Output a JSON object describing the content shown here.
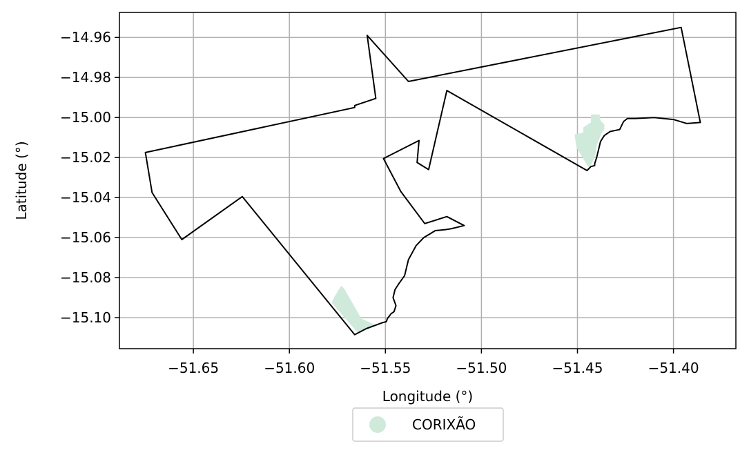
{
  "chart_data": {
    "type": "map",
    "xlabel": "Longitude (°)",
    "ylabel": "Latitude (°)",
    "xlim": [
      -51.6885,
      -51.3675
    ],
    "ylim": [
      -15.1155,
      -14.9475
    ],
    "grid": true,
    "x_ticks": [
      {
        "value": -51.65,
        "label": "−51.65"
      },
      {
        "value": -51.6,
        "label": "−51.60"
      },
      {
        "value": -51.55,
        "label": "−51.55"
      },
      {
        "value": -51.5,
        "label": "−51.50"
      },
      {
        "value": -51.45,
        "label": "−51.45"
      },
      {
        "value": -51.4,
        "label": "−51.40"
      }
    ],
    "y_ticks": [
      {
        "value": -14.96,
        "label": "−14.96"
      },
      {
        "value": -14.98,
        "label": "−14.98"
      },
      {
        "value": -15.0,
        "label": "−15.00"
      },
      {
        "value": -15.02,
        "label": "−15.02"
      },
      {
        "value": -15.04,
        "label": "−15.04"
      },
      {
        "value": -15.06,
        "label": "−15.06"
      },
      {
        "value": -15.08,
        "label": "−15.08"
      },
      {
        "value": -15.1,
        "label": "−15.10"
      }
    ],
    "boundary": {
      "stroke": "#000000",
      "coordinates": [
        [
          -51.675,
          -15.0175
        ],
        [
          -51.566,
          -14.995
        ],
        [
          -51.566,
          -14.994
        ],
        [
          -51.555,
          -14.9905
        ],
        [
          -51.5595,
          -14.959
        ],
        [
          -51.538,
          -14.982
        ],
        [
          -51.396,
          -14.955
        ],
        [
          -51.386,
          -15.0025
        ],
        [
          -51.393,
          -15.003
        ],
        [
          -51.4,
          -15.001
        ],
        [
          -51.41,
          -15.0
        ],
        [
          -51.42,
          -15.0005
        ],
        [
          -51.424,
          -15.0005
        ],
        [
          -51.426,
          -15.002
        ],
        [
          -51.428,
          -15.006
        ],
        [
          -51.433,
          -15.007
        ],
        [
          -51.436,
          -15.009
        ],
        [
          -51.438,
          -15.012
        ],
        [
          -51.439,
          -15.016
        ],
        [
          -51.44,
          -15.02
        ],
        [
          -51.441,
          -15.023
        ],
        [
          -51.441,
          -15.024
        ],
        [
          -51.443,
          -15.0245
        ],
        [
          -51.445,
          -15.0265
        ],
        [
          -51.518,
          -14.9865
        ],
        [
          -51.5275,
          -15.026
        ],
        [
          -51.5335,
          -15.0225
        ],
        [
          -51.5325,
          -15.0115
        ],
        [
          -51.551,
          -15.0205
        ],
        [
          -51.542,
          -15.037
        ],
        [
          -51.5295,
          -15.053
        ],
        [
          -51.518,
          -15.0495
        ],
        [
          -51.509,
          -15.054
        ],
        [
          -51.5155,
          -15.0555
        ],
        [
          -51.5185,
          -15.056
        ],
        [
          -51.524,
          -15.0565
        ],
        [
          -51.53,
          -15.06
        ],
        [
          -51.534,
          -15.064
        ],
        [
          -51.538,
          -15.071
        ],
        [
          -51.54,
          -15.079
        ],
        [
          -51.543,
          -15.083
        ],
        [
          -51.545,
          -15.086
        ],
        [
          -51.546,
          -15.09
        ],
        [
          -51.5445,
          -15.094
        ],
        [
          -51.5455,
          -15.097
        ],
        [
          -51.547,
          -15.098
        ],
        [
          -51.549,
          -15.1005
        ],
        [
          -51.5495,
          -15.102
        ],
        [
          -51.5515,
          -15.1025
        ],
        [
          -51.56,
          -15.1055
        ],
        [
          -51.566,
          -15.1085
        ],
        [
          -51.6245,
          -15.0395
        ],
        [
          -51.656,
          -15.061
        ],
        [
          -51.6715,
          -15.0375
        ],
        [
          -51.675,
          -15.0175
        ]
      ]
    },
    "series": [
      {
        "name": "CORIXÃO",
        "color": "#cfeadb",
        "polygons": [
          [
            [
              -51.5765,
              -15.0895
            ],
            [
              -51.573,
              -15.084
            ],
            [
              -51.5715,
              -15.0855
            ],
            [
              -51.5625,
              -15.1005
            ],
            [
              -51.5555,
              -15.1035
            ],
            [
              -51.5645,
              -15.1075
            ],
            [
              -51.578,
              -15.0925
            ],
            [
              -51.5775,
              -15.0915
            ]
          ],
          [
            [
              -51.447,
              -15.0075
            ],
            [
              -51.447,
              -15.005
            ],
            [
              -51.443,
              -15.0025
            ],
            [
              -51.443,
              -14.9985
            ],
            [
              -51.4385,
              -14.9985
            ],
            [
              -51.438,
              -15.0015
            ],
            [
              -51.436,
              -15.0035
            ],
            [
              -51.436,
              -15.006
            ],
            [
              -51.4375,
              -15.008
            ],
            [
              -51.44,
              -15.014
            ],
            [
              -51.4405,
              -15.018
            ],
            [
              -51.442,
              -15.022
            ],
            [
              -51.4435,
              -15.0245
            ],
            [
              -51.4445,
              -15.0245
            ],
            [
              -51.4505,
              -15.015
            ],
            [
              -51.4515,
              -15.0085
            ],
            [
              -51.449,
              -15.008
            ]
          ]
        ]
      }
    ],
    "legend": {
      "position": "bottom-center",
      "entries": [
        {
          "label": "CORIXÃO",
          "color": "#cfeadb"
        }
      ]
    }
  }
}
